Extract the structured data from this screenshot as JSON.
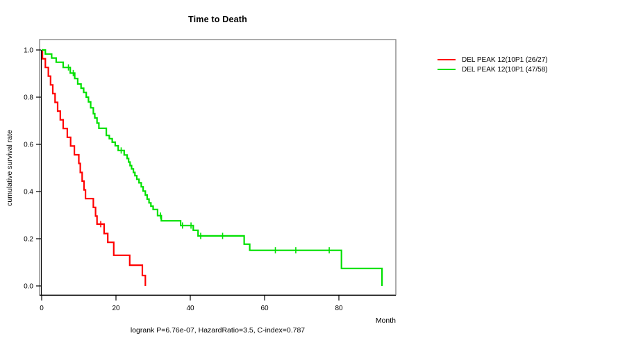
{
  "title": "Time to Death",
  "caption": "logrank P=6.76e-07, HazardRatio=3.5, C-index=0.787",
  "axes": {
    "x_label": "Month",
    "y_label": "cumulative survival rate",
    "x_ticks": {
      "values": [
        0,
        20,
        40,
        60,
        80
      ],
      "labels": [
        "0",
        "20",
        "40",
        "60",
        "80"
      ]
    },
    "y_ticks": {
      "values": [
        0.0,
        0.2,
        0.4,
        0.6,
        0.8,
        1.0
      ],
      "labels": [
        "0.0",
        "0.2",
        "0.4",
        "0.6",
        "0.8",
        "1.0"
      ]
    }
  },
  "legend": {
    "items": [
      {
        "label": "DEL PEAK 12(10P1 (26/27)",
        "color": "#ff0000"
      },
      {
        "label": "DEL PEAK 12(10P1 (47/58)",
        "color": "#00e000"
      }
    ]
  },
  "chart_data": {
    "type": "line",
    "subtype": "kaplan-meier-step",
    "title": "Time to Death",
    "xlabel": "Month",
    "ylabel": "cumulative survival rate",
    "xlim": [
      0,
      95
    ],
    "ylim": [
      0.0,
      1.0
    ],
    "grid": false,
    "legend_position": "top-right-outside",
    "stats": {
      "logrank_p": "6.76e-07",
      "hazard_ratio": "3.5",
      "c_index": "0.787"
    },
    "series": [
      {
        "name": "DEL PEAK 12(10P1 (26/27)",
        "events": "26/27",
        "color": "#ff0000",
        "points": [
          [
            0,
            1.0
          ],
          [
            0.2,
            0.963
          ],
          [
            1.0,
            0.926
          ],
          [
            1.8,
            0.889
          ],
          [
            2.4,
            0.852
          ],
          [
            3.0,
            0.815
          ],
          [
            3.6,
            0.778
          ],
          [
            4.3,
            0.741
          ],
          [
            5.0,
            0.704
          ],
          [
            5.8,
            0.667
          ],
          [
            6.9,
            0.63
          ],
          [
            7.8,
            0.593
          ],
          [
            8.8,
            0.556
          ],
          [
            10.0,
            0.519
          ],
          [
            10.4,
            0.481
          ],
          [
            10.9,
            0.444
          ],
          [
            11.4,
            0.407
          ],
          [
            11.8,
            0.37
          ],
          [
            13.9,
            0.333
          ],
          [
            14.5,
            0.296
          ],
          [
            14.9,
            0.262
          ],
          [
            16.8,
            0.222
          ],
          [
            17.8,
            0.185
          ],
          [
            19.4,
            0.13
          ],
          [
            23.7,
            0.088
          ],
          [
            27.1,
            0.044
          ],
          [
            27.9,
            0.0
          ]
        ],
        "censors": [
          [
            15.9,
            0.262
          ]
        ]
      },
      {
        "name": "DEL PEAK 12(10P1 (47/58)",
        "events": "47/58",
        "color": "#00e000",
        "points": [
          [
            0,
            1.0
          ],
          [
            1.0,
            0.983
          ],
          [
            2.7,
            0.966
          ],
          [
            3.9,
            0.948
          ],
          [
            5.8,
            0.926
          ],
          [
            7.7,
            0.902
          ],
          [
            8.9,
            0.879
          ],
          [
            9.7,
            0.856
          ],
          [
            10.6,
            0.838
          ],
          [
            11.3,
            0.82
          ],
          [
            12.0,
            0.8
          ],
          [
            12.6,
            0.78
          ],
          [
            13.2,
            0.755
          ],
          [
            13.9,
            0.73
          ],
          [
            14.3,
            0.712
          ],
          [
            14.9,
            0.69
          ],
          [
            15.4,
            0.668
          ],
          [
            17.4,
            0.638
          ],
          [
            18.2,
            0.624
          ],
          [
            19.0,
            0.609
          ],
          [
            19.8,
            0.594
          ],
          [
            20.6,
            0.574
          ],
          [
            22.2,
            0.555
          ],
          [
            23.0,
            0.54
          ],
          [
            23.4,
            0.525
          ],
          [
            23.8,
            0.51
          ],
          [
            24.2,
            0.496
          ],
          [
            24.7,
            0.481
          ],
          [
            25.1,
            0.467
          ],
          [
            25.6,
            0.452
          ],
          [
            26.2,
            0.437
          ],
          [
            26.8,
            0.42
          ],
          [
            27.3,
            0.402
          ],
          [
            27.9,
            0.385
          ],
          [
            28.4,
            0.368
          ],
          [
            28.9,
            0.352
          ],
          [
            29.4,
            0.338
          ],
          [
            30.0,
            0.324
          ],
          [
            31.2,
            0.298
          ],
          [
            32.2,
            0.276
          ],
          [
            37.4,
            0.256
          ],
          [
            40.8,
            0.236
          ],
          [
            42.1,
            0.212
          ],
          [
            54.5,
            0.177
          ],
          [
            56.0,
            0.151
          ],
          [
            80.7,
            0.074
          ],
          [
            91.6,
            0.0
          ]
        ],
        "censors": [
          [
            7.2,
            0.926
          ],
          [
            8.5,
            0.902
          ],
          [
            21.4,
            0.574
          ],
          [
            32.0,
            0.298
          ],
          [
            37.9,
            0.256
          ],
          [
            40.2,
            0.256
          ],
          [
            42.8,
            0.212
          ],
          [
            48.7,
            0.212
          ],
          [
            62.9,
            0.151
          ],
          [
            68.4,
            0.151
          ],
          [
            77.4,
            0.151
          ]
        ]
      }
    ]
  }
}
